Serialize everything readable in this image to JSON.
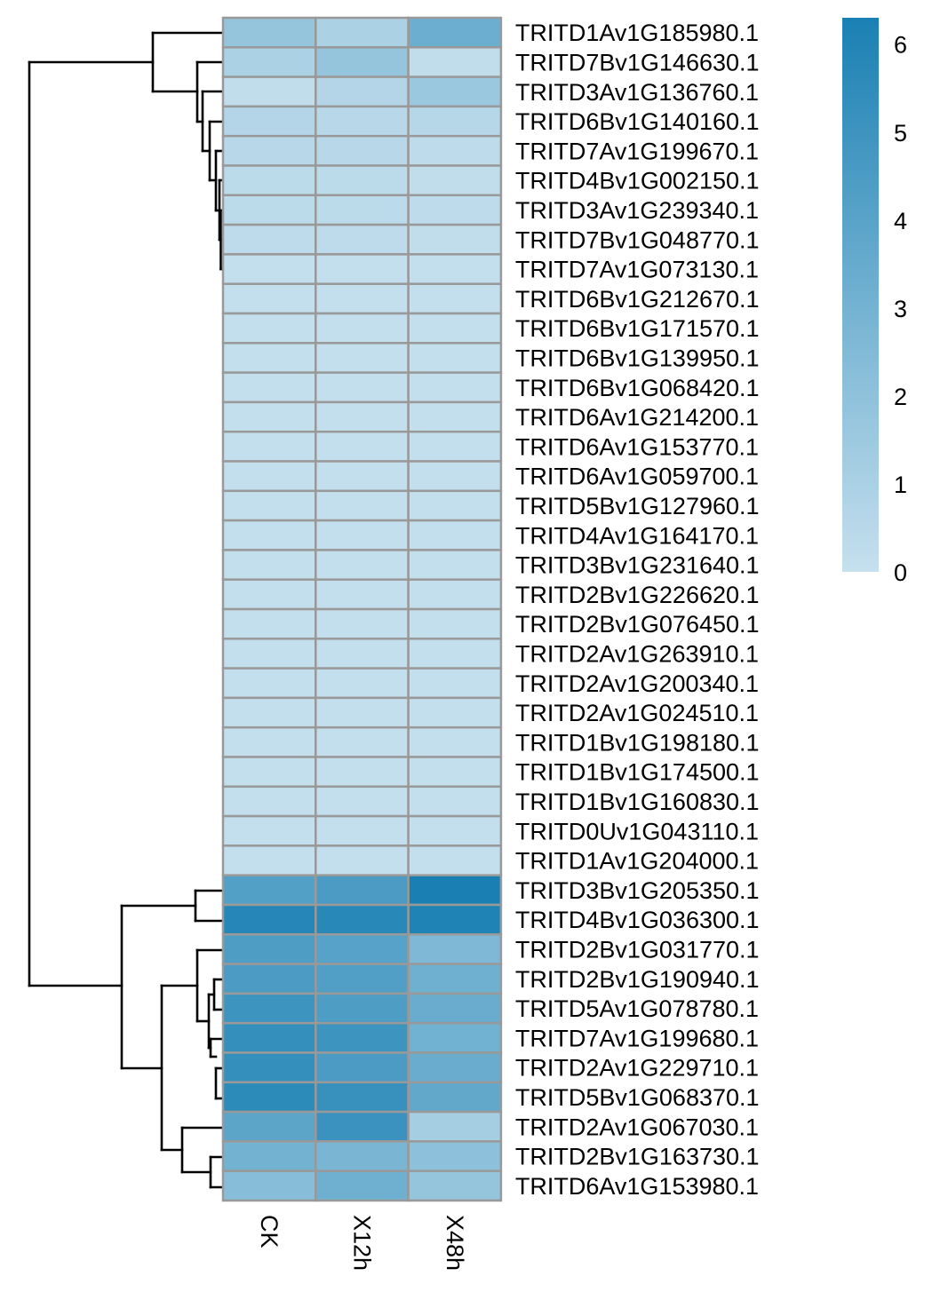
{
  "chart_data": {
    "type": "heatmap",
    "title": "",
    "xlabel": "",
    "ylabel": "",
    "columns": [
      "CK",
      "X12h",
      "X48h"
    ],
    "rows": [
      "TRITD1Av1G185980.1",
      "TRITD7Bv1G146630.1",
      "TRITD3Av1G136760.1",
      "TRITD6Bv1G140160.1",
      "TRITD7Av1G199670.1",
      "TRITD4Bv1G002150.1",
      "TRITD3Av1G239340.1",
      "TRITD7Bv1G048770.1",
      "TRITD7Av1G073130.1",
      "TRITD6Bv1G212670.1",
      "TRITD6Bv1G171570.1",
      "TRITD6Bv1G139950.1",
      "TRITD6Bv1G068420.1",
      "TRITD6Av1G214200.1",
      "TRITD6Av1G153770.1",
      "TRITD6Av1G059700.1",
      "TRITD5Bv1G127960.1",
      "TRITD4Av1G164170.1",
      "TRITD3Bv1G231640.1",
      "TRITD2Bv1G226620.1",
      "TRITD2Bv1G076450.1",
      "TRITD2Av1G263910.1",
      "TRITD2Av1G200340.1",
      "TRITD2Av1G024510.1",
      "TRITD1Bv1G198180.1",
      "TRITD1Bv1G174500.1",
      "TRITD1Bv1G160830.1",
      "TRITD0Uv1G043110.1",
      "TRITD1Av1G204000.1",
      "TRITD3Bv1G205350.1",
      "TRITD4Bv1G036300.1",
      "TRITD2Bv1G031770.1",
      "TRITD2Bv1G190940.1",
      "TRITD5Av1G078780.1",
      "TRITD7Av1G199680.1",
      "TRITD2Av1G229710.1",
      "TRITD5Bv1G068370.1",
      "TRITD2Av1G067030.1",
      "TRITD2Bv1G163730.1",
      "TRITD6Av1G153980.1"
    ],
    "values": [
      [
        1.8,
        1.0,
        3.3
      ],
      [
        1.0,
        1.8,
        0.2
      ],
      [
        0.2,
        0.7,
        1.6
      ],
      [
        0.7,
        0.5,
        0.6
      ],
      [
        0.5,
        0.5,
        0.3
      ],
      [
        0.4,
        0.4,
        0.2
      ],
      [
        0.4,
        0.4,
        0.3
      ],
      [
        0.3,
        0.3,
        0.2
      ],
      [
        0.1,
        0.1,
        0.1
      ],
      [
        0.1,
        0.1,
        0.1
      ],
      [
        0.1,
        0.1,
        0.1
      ],
      [
        0.1,
        0.1,
        0.1
      ],
      [
        0.1,
        0.1,
        0.1
      ],
      [
        0.1,
        0.1,
        0.1
      ],
      [
        0.1,
        0.1,
        0.1
      ],
      [
        0.1,
        0.1,
        0.1
      ],
      [
        0.1,
        0.1,
        0.1
      ],
      [
        0.1,
        0.1,
        0.1
      ],
      [
        0.1,
        0.1,
        0.1
      ],
      [
        0.1,
        0.1,
        0.1
      ],
      [
        0.1,
        0.1,
        0.1
      ],
      [
        0.1,
        0.1,
        0.1
      ],
      [
        0.1,
        0.1,
        0.1
      ],
      [
        0.1,
        0.1,
        0.1
      ],
      [
        0.1,
        0.1,
        0.1
      ],
      [
        0.1,
        0.1,
        0.1
      ],
      [
        0.1,
        0.1,
        0.1
      ],
      [
        0.1,
        0.1,
        0.1
      ],
      [
        0.1,
        0.1,
        0.1
      ],
      [
        4.2,
        4.5,
        6.3
      ],
      [
        5.9,
        5.8,
        6.1
      ],
      [
        4.4,
        4.1,
        2.6
      ],
      [
        4.5,
        4.3,
        3.2
      ],
      [
        5.0,
        4.4,
        3.4
      ],
      [
        5.3,
        5.0,
        3.1
      ],
      [
        5.3,
        4.5,
        3.4
      ],
      [
        5.6,
        5.2,
        3.7
      ],
      [
        3.9,
        5.1,
        1.2
      ],
      [
        3.0,
        2.8,
        2.1
      ],
      [
        2.3,
        3.2,
        1.8
      ]
    ],
    "color_scale": {
      "min": 0,
      "max": 6.3,
      "low_color": "#c6e0ee",
      "high_color": "#1a80b3",
      "ticks": [
        0,
        1,
        2,
        3,
        4,
        5,
        6
      ]
    },
    "cell_border_color": "#999999",
    "legend_position": "top-right",
    "row_dendrogram": true
  }
}
